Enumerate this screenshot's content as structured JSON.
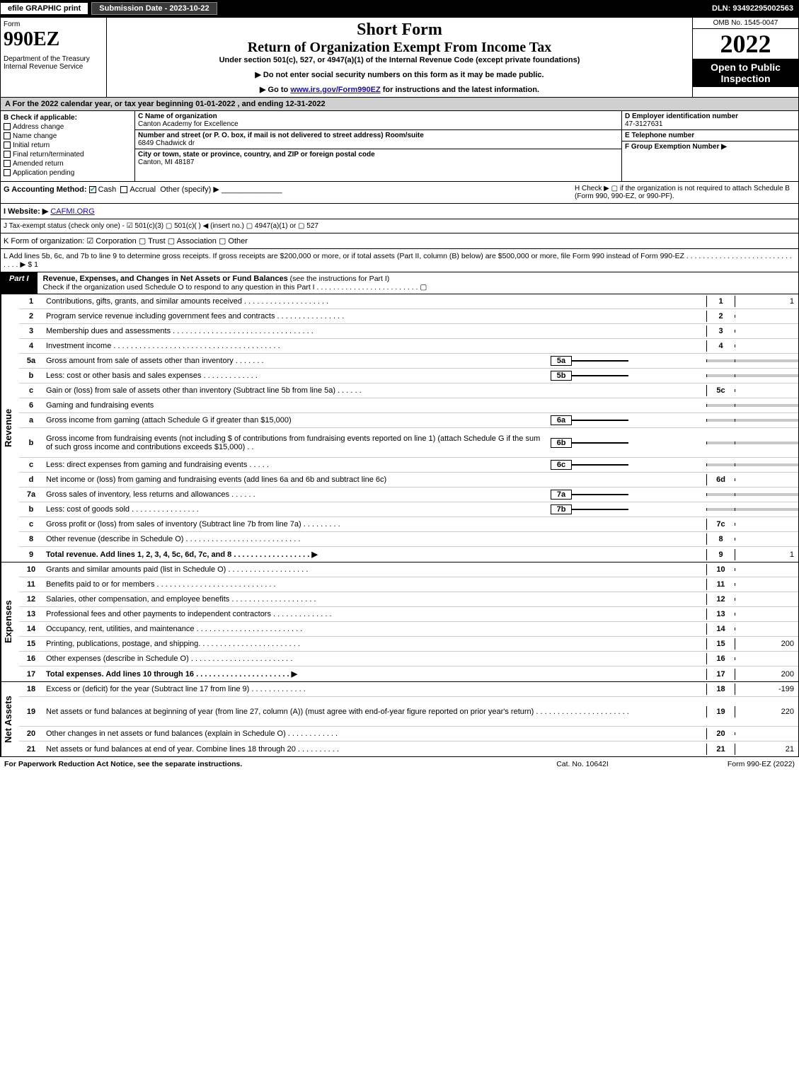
{
  "topbar": {
    "efile": "efile GRAPHIC print",
    "subdate": "Submission Date - 2023-10-22",
    "dln": "DLN: 93492295002563"
  },
  "header": {
    "form": "Form",
    "formno": "990EZ",
    "dept": "Department of the Treasury\nInternal Revenue Service",
    "shortform": "Short Form",
    "return": "Return of Organization Exempt From Income Tax",
    "undersec": "Under section 501(c), 527, or 4947(a)(1) of the Internal Revenue Code (except private foundations)",
    "note1": "▶ Do not enter social security numbers on this form as it may be made public.",
    "note2_pre": "▶ Go to ",
    "note2_link": "www.irs.gov/Form990EZ",
    "note2_post": " for instructions and the latest information.",
    "omb": "OMB No. 1545-0047",
    "year": "2022",
    "open": "Open to Public Inspection"
  },
  "A": {
    "text": "A  For the 2022 calendar year, or tax year beginning 01-01-2022 , and ending 12-31-2022"
  },
  "B": {
    "hdr": "B  Check if applicable:",
    "opts": [
      "Address change",
      "Name change",
      "Initial return",
      "Final return/terminated",
      "Amended return",
      "Application pending"
    ]
  },
  "C": {
    "name_lbl": "C Name of organization",
    "name": "Canton Academy for Excellence",
    "street_lbl": "Number and street (or P. O. box, if mail is not delivered to street address)       Room/suite",
    "street": "6849 Chadwick dr",
    "city_lbl": "City or town, state or province, country, and ZIP or foreign postal code",
    "city": "Canton, MI  48187"
  },
  "D": {
    "ein_lbl": "D Employer identification number",
    "ein": "47-3127631",
    "tel_lbl": "E Telephone number",
    "tel": "",
    "group_lbl": "F Group Exemption Number   ▶",
    "group": ""
  },
  "G": {
    "label": "G Accounting Method:",
    "cash": "Cash",
    "accrual": "Accrual",
    "other": "Other (specify) ▶"
  },
  "H": {
    "text": "H  Check ▶  ▢  if the organization is not required to attach Schedule B (Form 990, 990-EZ, or 990-PF)."
  },
  "I": {
    "label": "I Website: ▶",
    "val": "CAFMI.ORG"
  },
  "J": {
    "text": "J Tax-exempt status (check only one) -  ☑ 501(c)(3)  ▢ 501(c)(  ) ◀ (insert no.)  ▢ 4947(a)(1) or  ▢ 527"
  },
  "K": {
    "text": "K Form of organization:  ☑ Corporation   ▢ Trust   ▢ Association   ▢ Other"
  },
  "L": {
    "text": "L Add lines 5b, 6c, and 7b to line 9 to determine gross receipts. If gross receipts are $200,000 or more, or if total assets (Part II, column (B) below) are $500,000 or more, file Form 990 instead of Form 990-EZ . . . . . . . . . . . . . . . . . . . . . . . . . . . . . . ▶ $ 1"
  },
  "partI": {
    "tag": "Part I",
    "title": "Revenue, Expenses, and Changes in Net Assets or Fund Balances",
    "sub": " (see the instructions for Part I)",
    "check": "Check if the organization used Schedule O to respond to any question in this Part I . . . . . . . . . . . . . . . . . . . . . . . . . ▢"
  },
  "revenue_label": "Revenue",
  "expenses_label": "Expenses",
  "netassets_label": "Net Assets",
  "lines_rev": [
    {
      "n": "1",
      "d": "Contributions, gifts, grants, and similar amounts received . . . . . . . . . . . . . . . . . . . .",
      "rn": "1",
      "rv": "1"
    },
    {
      "n": "2",
      "d": "Program service revenue including government fees and contracts . . . . . . . . . . . . . . . .",
      "rn": "2",
      "rv": ""
    },
    {
      "n": "3",
      "d": "Membership dues and assessments . . . . . . . . . . . . . . . . . . . . . . . . . . . . . . . . .",
      "rn": "3",
      "rv": ""
    },
    {
      "n": "4",
      "d": "Investment income . . . . . . . . . . . . . . . . . . . . . . . . . . . . . . . . . . . . . . .",
      "rn": "4",
      "rv": ""
    },
    {
      "n": "5a",
      "d": "Gross amount from sale of assets other than inventory . . . . . . .",
      "mid": "5a",
      "gray": true
    },
    {
      "n": "b",
      "d": "Less: cost or other basis and sales expenses . . . . . . . . . . . . .",
      "mid": "5b",
      "gray": true
    },
    {
      "n": "c",
      "d": "Gain or (loss) from sale of assets other than inventory (Subtract line 5b from line 5a) . . . . . .",
      "rn": "5c",
      "rv": ""
    },
    {
      "n": "6",
      "d": "Gaming and fundraising events",
      "plain": true
    },
    {
      "n": "a",
      "d": "Gross income from gaming (attach Schedule G if greater than $15,000)",
      "mid": "6a",
      "gray": true
    },
    {
      "n": "b",
      "d": "Gross income from fundraising events (not including $                    of contributions from fundraising events reported on line 1) (attach Schedule G if the sum of such gross income and contributions exceeds $15,000)   . .",
      "mid": "6b",
      "gray": true,
      "tall": true
    },
    {
      "n": "c",
      "d": "Less: direct expenses from gaming and fundraising events   . . . . .",
      "mid": "6c",
      "gray": true
    },
    {
      "n": "d",
      "d": "Net income or (loss) from gaming and fundraising events (add lines 6a and 6b and subtract line 6c)",
      "rn": "6d",
      "rv": ""
    },
    {
      "n": "7a",
      "d": "Gross sales of inventory, less returns and allowances . . . . . .",
      "mid": "7a",
      "gray": true
    },
    {
      "n": "b",
      "d": "Less: cost of goods sold        . . . . . . . . . . . . . . . .",
      "mid": "7b",
      "gray": true
    },
    {
      "n": "c",
      "d": "Gross profit or (loss) from sales of inventory (Subtract line 7b from line 7a) . . . . . . . . .",
      "rn": "7c",
      "rv": ""
    },
    {
      "n": "8",
      "d": "Other revenue (describe in Schedule O) . . . . . . . . . . . . . . . . . . . . . . . . . . .",
      "rn": "8",
      "rv": ""
    },
    {
      "n": "9",
      "d": "Total revenue. Add lines 1, 2, 3, 4, 5c, 6d, 7c, and 8  . . . . . . . . . . . . . . . . . . ▶",
      "rn": "9",
      "rv": "1",
      "bold": true
    }
  ],
  "lines_exp": [
    {
      "n": "10",
      "d": "Grants and similar amounts paid (list in Schedule O) . . . . . . . . . . . . . . . . . . .",
      "rn": "10",
      "rv": ""
    },
    {
      "n": "11",
      "d": "Benefits paid to or for members    . . . . . . . . . . . . . . . . . . . . . . . . . . . .",
      "rn": "11",
      "rv": ""
    },
    {
      "n": "12",
      "d": "Salaries, other compensation, and employee benefits . . . . . . . . . . . . . . . . . . . .",
      "rn": "12",
      "rv": ""
    },
    {
      "n": "13",
      "d": "Professional fees and other payments to independent contractors . . . . . . . . . . . . . .",
      "rn": "13",
      "rv": ""
    },
    {
      "n": "14",
      "d": "Occupancy, rent, utilities, and maintenance . . . . . . . . . . . . . . . . . . . . . . . . .",
      "rn": "14",
      "rv": ""
    },
    {
      "n": "15",
      "d": "Printing, publications, postage, and shipping. . . . . . . . . . . . . . . . . . . . . . . .",
      "rn": "15",
      "rv": "200"
    },
    {
      "n": "16",
      "d": "Other expenses (describe in Schedule O)    . . . . . . . . . . . . . . . . . . . . . . . .",
      "rn": "16",
      "rv": ""
    },
    {
      "n": "17",
      "d": "Total expenses. Add lines 10 through 16     . . . . . . . . . . . . . . . . . . . . . . ▶",
      "rn": "17",
      "rv": "200",
      "bold": true
    }
  ],
  "lines_net": [
    {
      "n": "18",
      "d": "Excess or (deficit) for the year (Subtract line 17 from line 9)       . . . . . . . . . . . . .",
      "rn": "18",
      "rv": "-199"
    },
    {
      "n": "19",
      "d": "Net assets or fund balances at beginning of year (from line 27, column (A)) (must agree with end-of-year figure reported on prior year's return) . . . . . . . . . . . . . . . . . . . . . .",
      "rn": "19",
      "rv": "220",
      "tall": true
    },
    {
      "n": "20",
      "d": "Other changes in net assets or fund balances (explain in Schedule O) . . . . . . . . . . . .",
      "rn": "20",
      "rv": ""
    },
    {
      "n": "21",
      "d": "Net assets or fund balances at end of year. Combine lines 18 through 20 . . . . . . . . . .",
      "rn": "21",
      "rv": "21"
    }
  ],
  "footer": {
    "l": "For Paperwork Reduction Act Notice, see the separate instructions.",
    "m": "Cat. No. 10642I",
    "r": "Form 990-EZ (2022)"
  }
}
